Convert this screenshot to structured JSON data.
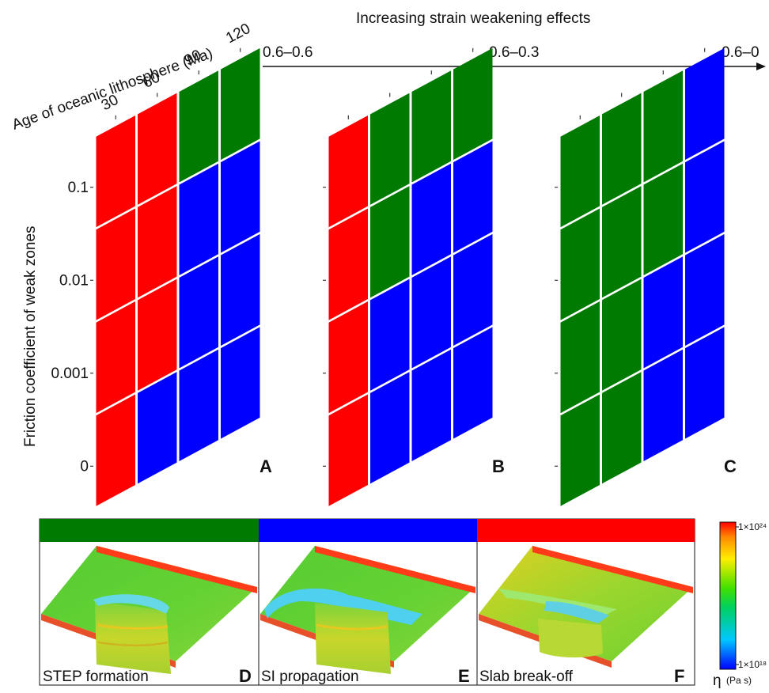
{
  "colors": {
    "red": "#ff0000",
    "green": "#007a00",
    "blue": "#0000ff",
    "grid_line": "#ffffff"
  },
  "header": {
    "title": "Increasing strain weakening effects",
    "weakening_labels": [
      "0.6–0.6",
      "0.6–0.3",
      "0.6–0"
    ]
  },
  "axes": {
    "x_label": "Age of oceanic lithosphere (Ma)",
    "x_ticks": [
      "30",
      "60",
      "90",
      "120"
    ],
    "y_label": "Friction coefficient of weak zones",
    "y_ticks": [
      "0.1",
      "0.01",
      "0.001",
      "0"
    ]
  },
  "panels": [
    {
      "id": "A",
      "grid": [
        [
          "red",
          "red",
          "green",
          "green"
        ],
        [
          "red",
          "red",
          "blue",
          "blue"
        ],
        [
          "red",
          "red",
          "blue",
          "blue"
        ],
        [
          "red",
          "blue",
          "blue",
          "blue"
        ]
      ]
    },
    {
      "id": "B",
      "grid": [
        [
          "red",
          "green",
          "green",
          "green"
        ],
        [
          "red",
          "green",
          "blue",
          "blue"
        ],
        [
          "red",
          "blue",
          "blue",
          "blue"
        ],
        [
          "red",
          "blue",
          "blue",
          "blue"
        ]
      ]
    },
    {
      "id": "C",
      "grid": [
        [
          "green",
          "green",
          "green",
          "blue"
        ],
        [
          "green",
          "green",
          "green",
          "blue"
        ],
        [
          "green",
          "green",
          "blue",
          "blue"
        ],
        [
          "green",
          "green",
          "blue",
          "blue"
        ]
      ]
    }
  ],
  "bottom_panels": [
    {
      "id": "D",
      "caption": "STEP formation",
      "color": "green"
    },
    {
      "id": "E",
      "caption": "SI propagation",
      "color": "blue"
    },
    {
      "id": "F",
      "caption": "Slab break-off",
      "color": "red"
    }
  ],
  "colorbar": {
    "max_label": "1×10²⁴",
    "min_label": "1×10¹⁸",
    "quantity": "η",
    "unit": "(Pa s)"
  }
}
